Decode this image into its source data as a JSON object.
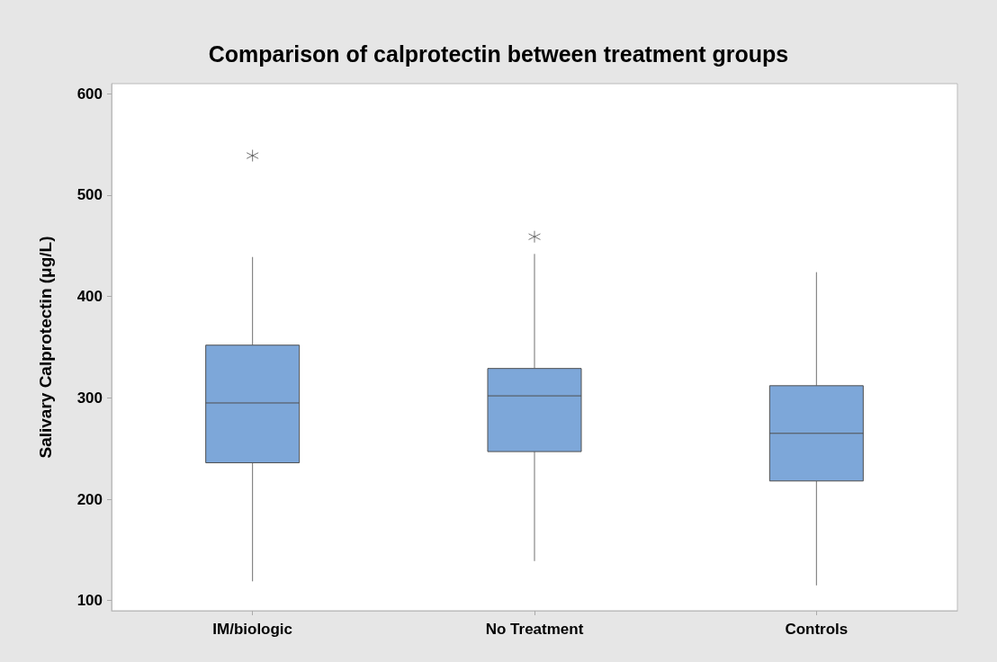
{
  "chart_data": {
    "type": "box",
    "title": "Comparison of calprotectin between treatment groups",
    "ylabel": "Salivary Calprotectin (μg/L)",
    "categories": [
      "IM/biologic",
      "No Treatment",
      "Controls"
    ],
    "color": "#7da7d9",
    "boxes": [
      {
        "low": 119,
        "q1": 236,
        "median": 295,
        "q3": 352,
        "high": 439,
        "outliers": [
          539
        ]
      },
      {
        "low": 139,
        "q1": 247,
        "median": 302,
        "q3": 329,
        "high": 442,
        "outliers": [
          459
        ]
      },
      {
        "low": 115,
        "q1": 218,
        "median": 265,
        "q3": 312,
        "high": 424
      }
    ],
    "ylim": [
      90,
      610
    ],
    "yticks": [
      100,
      200,
      300,
      400,
      500,
      600
    ],
    "grid": false
  }
}
